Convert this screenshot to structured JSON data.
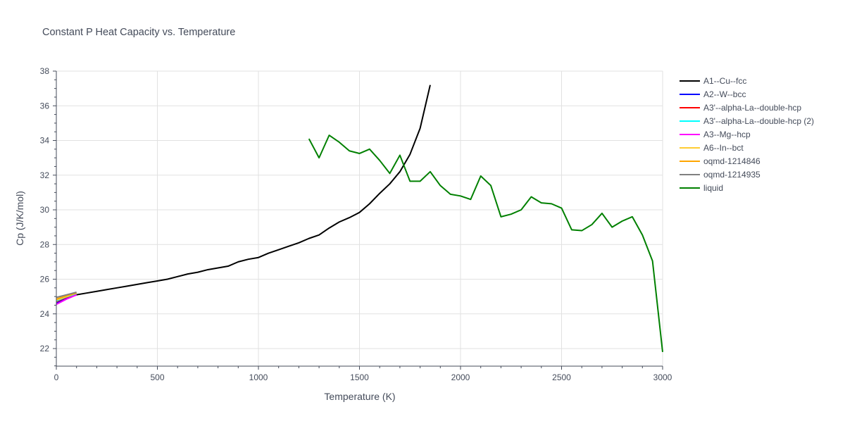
{
  "chart_data": {
    "type": "line",
    "title": "Constant P Heat Capacity vs. Temperature",
    "xlabel": "Temperature (K)",
    "ylabel": "Cp (J/K/mol)",
    "xlim": [
      0,
      3000
    ],
    "ylim": [
      21,
      38
    ],
    "xticks": [
      0,
      500,
      1000,
      1500,
      2000,
      2500,
      3000
    ],
    "xtick_labels": [
      "0",
      "500",
      "1000",
      "1500",
      "2000",
      "2500",
      "3000"
    ],
    "yticks": [
      22,
      24,
      26,
      28,
      30,
      32,
      34,
      36,
      38
    ],
    "ytick_labels": [
      "22",
      "24",
      "26",
      "28",
      "30",
      "32",
      "34",
      "36",
      "38"
    ],
    "grid": true,
    "legend_position": "right",
    "series": [
      {
        "name": "A1--Cu--fcc",
        "color": "#000000",
        "x": [
          0,
          50,
          100,
          150,
          200,
          250,
          300,
          350,
          400,
          450,
          500,
          550,
          600,
          650,
          700,
          750,
          800,
          850,
          900,
          950,
          1000,
          1050,
          1100,
          1150,
          1200,
          1250,
          1300,
          1350,
          1400,
          1450,
          1500,
          1550,
          1600,
          1650,
          1700,
          1750,
          1800,
          1850
        ],
        "y": [
          24.6,
          24.9,
          25.1,
          25.2,
          25.3,
          25.4,
          25.5,
          25.6,
          25.7,
          25.8,
          25.9,
          26.0,
          26.15,
          26.3,
          26.4,
          26.55,
          26.65,
          26.75,
          27.0,
          27.15,
          27.25,
          27.5,
          27.7,
          27.9,
          28.1,
          28.35,
          28.55,
          28.95,
          29.3,
          29.55,
          29.85,
          30.35,
          30.95,
          31.5,
          32.2,
          33.2,
          34.7,
          37.2
        ]
      },
      {
        "name": "A2--W--bcc",
        "color": "#0000ff",
        "x": [
          0,
          50,
          100
        ],
        "y": [
          24.6,
          24.9,
          25.1
        ]
      },
      {
        "name": "A3'--alpha-La--double-hcp",
        "color": "#ff0000",
        "x": [
          0,
          50,
          100
        ],
        "y": [
          24.7,
          24.95,
          25.15
        ]
      },
      {
        "name": "A3'--alpha-La--double-hcp (2)",
        "color": "#00ffff",
        "x": [
          0,
          50,
          100
        ],
        "y": [
          24.75,
          24.98,
          25.16
        ]
      },
      {
        "name": "A3--Mg--hcp",
        "color": "#ff00ff",
        "x": [
          0,
          50,
          100
        ],
        "y": [
          24.55,
          24.85,
          25.1
        ]
      },
      {
        "name": "A6--In--bct",
        "color": "#ffcc33",
        "x": [
          0,
          50,
          100
        ],
        "y": [
          24.8,
          25.0,
          25.2
        ]
      },
      {
        "name": "oqmd-1214846",
        "color": "#ffa500",
        "x": [
          0,
          50,
          100
        ],
        "y": [
          24.85,
          25.05,
          25.2
        ]
      },
      {
        "name": "oqmd-1214935",
        "color": "#808080",
        "x": [
          0,
          50,
          100
        ],
        "y": [
          24.95,
          25.1,
          25.25
        ]
      },
      {
        "name": "liquid",
        "color": "#008000",
        "x": [
          1250,
          1300,
          1350,
          1400,
          1450,
          1500,
          1550,
          1600,
          1650,
          1700,
          1750,
          1800,
          1850,
          1900,
          1950,
          2000,
          2050,
          2100,
          2150,
          2200,
          2250,
          2300,
          2350,
          2400,
          2450,
          2500,
          2550,
          2600,
          2650,
          2700,
          2750,
          2800,
          2850,
          2900,
          2950,
          3000
        ],
        "y": [
          34.1,
          33.0,
          34.3,
          33.9,
          33.4,
          33.25,
          33.5,
          32.85,
          32.1,
          33.15,
          31.65,
          31.65,
          32.2,
          31.4,
          30.9,
          30.8,
          30.6,
          31.95,
          31.4,
          29.6,
          29.75,
          30.0,
          30.75,
          30.4,
          30.35,
          30.1,
          28.85,
          28.8,
          29.15,
          29.8,
          29.0,
          29.35,
          29.6,
          28.55,
          27.05,
          21.8
        ]
      }
    ]
  }
}
